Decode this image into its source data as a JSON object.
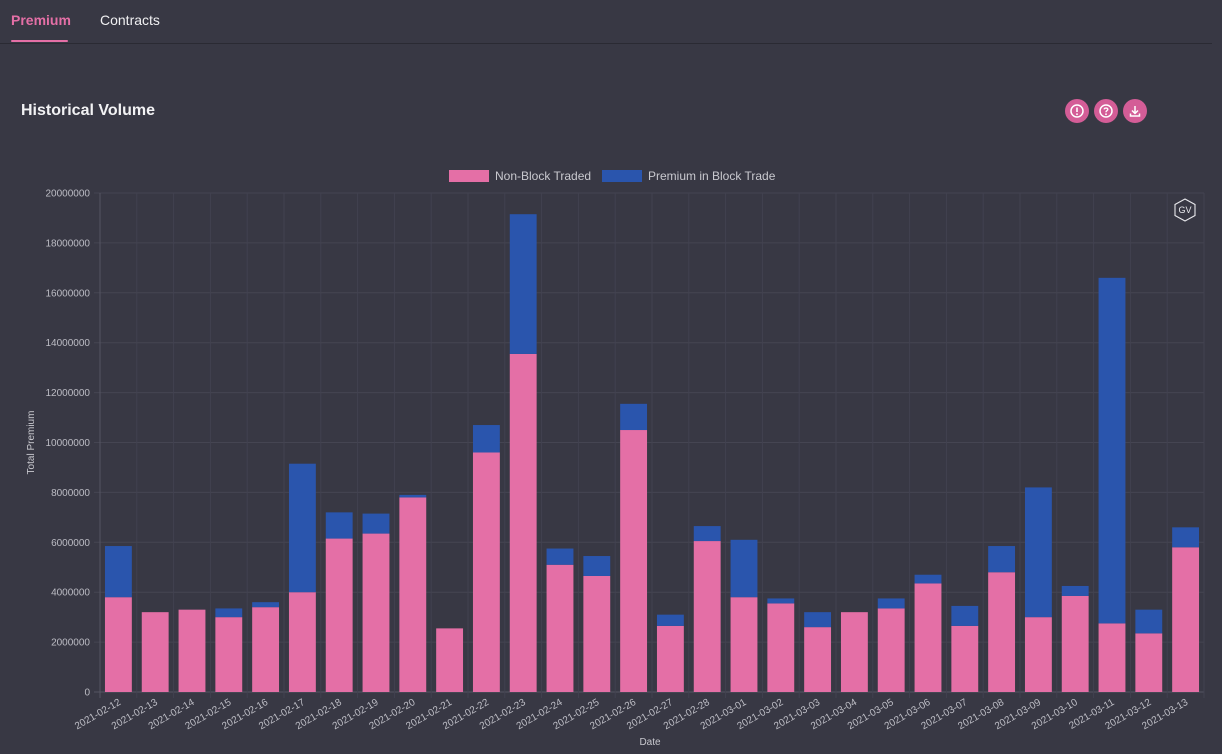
{
  "tabs": [
    {
      "label": "Premium",
      "active": true
    },
    {
      "label": "Contracts",
      "active": false
    }
  ],
  "section_title": "Historical Volume",
  "toolbar": {
    "icons": [
      "info-icon",
      "help-icon",
      "download-icon"
    ],
    "accent_color": "#d45d97"
  },
  "watermark": "GV",
  "chart_data": {
    "type": "bar",
    "stacked": true,
    "xlabel": "Date",
    "ylabel": "Total Premium",
    "ylim": [
      0,
      20000000
    ],
    "y_ticks": [
      "0",
      "2000000",
      "4000000",
      "6000000",
      "8000000",
      "10000000",
      "12000000",
      "14000000",
      "16000000",
      "18000000",
      "20000000"
    ],
    "legend_position": "top-center",
    "grid": true,
    "categories": [
      "2021-02-12",
      "2021-02-13",
      "2021-02-14",
      "2021-02-15",
      "2021-02-16",
      "2021-02-17",
      "2021-02-18",
      "2021-02-19",
      "2021-02-20",
      "2021-02-21",
      "2021-02-22",
      "2021-02-23",
      "2021-02-24",
      "2021-02-25",
      "2021-02-26",
      "2021-02-27",
      "2021-02-28",
      "2021-03-01",
      "2021-03-02",
      "2021-03-03",
      "2021-03-04",
      "2021-03-05",
      "2021-03-06",
      "2021-03-07",
      "2021-03-08",
      "2021-03-09",
      "2021-03-10",
      "2021-03-11",
      "2021-03-12",
      "2021-03-13"
    ],
    "series": [
      {
        "name": "Non-Block Traded",
        "color": "#e46fa6",
        "values": [
          3800000,
          3200000,
          3300000,
          3000000,
          3400000,
          4000000,
          6150000,
          6350000,
          7800000,
          2550000,
          9600000,
          13550000,
          5100000,
          4650000,
          10500000,
          2650000,
          6050000,
          3800000,
          3550000,
          2600000,
          3200000,
          3350000,
          4350000,
          2650000,
          4800000,
          3000000,
          3850000,
          2750000,
          2350000,
          5800000
        ]
      },
      {
        "name": "Premium in Block Trade",
        "color": "#2a55ad",
        "values": [
          2050000,
          0,
          0,
          350000,
          200000,
          5150000,
          1050000,
          800000,
          100000,
          0,
          1100000,
          5600000,
          650000,
          800000,
          1050000,
          450000,
          600000,
          2300000,
          200000,
          600000,
          0,
          400000,
          350000,
          800000,
          1050000,
          5200000,
          400000,
          13850000,
          950000,
          800000
        ]
      }
    ]
  }
}
